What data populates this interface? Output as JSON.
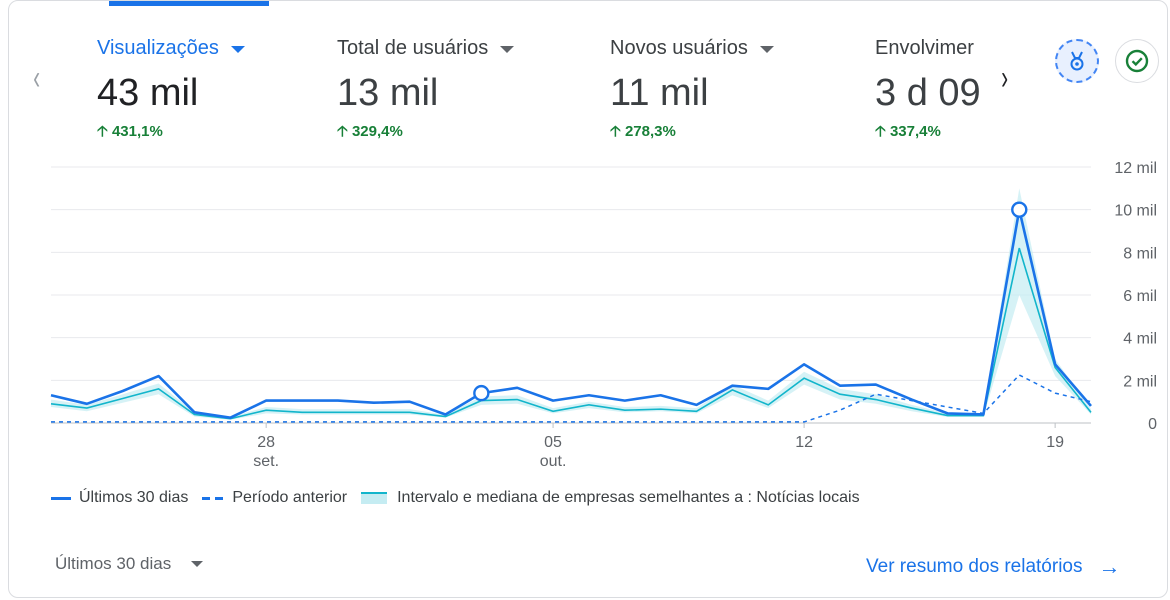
{
  "metrics": [
    {
      "label": "Visualizações",
      "value": "43 mil",
      "change": "431,1%"
    },
    {
      "label": "Total de usuários",
      "value": "13 mil",
      "change": "329,4%"
    },
    {
      "label": "Novos usuários",
      "value": "11 mil",
      "change": "278,3%"
    },
    {
      "label": "Envolvimer",
      "value": "3 d 09",
      "change": "337,4%"
    }
  ],
  "icons": {
    "prev": "chevron-left-icon",
    "next": "chevron-right-icon",
    "insights": "insights-badge-icon",
    "check": "check-circle-icon",
    "trend": "arrow-up-icon",
    "report_arrow": "arrow-right-icon"
  },
  "colors": {
    "accent": "#1a73e8",
    "positive": "#188038",
    "benchmark": "#12b5cb",
    "benchmark_band": "#c5ecf2"
  },
  "chart_data": {
    "type": "line",
    "x_tick_labels": [
      {
        "index": 6,
        "day": "28",
        "month": "set."
      },
      {
        "index": 14,
        "day": "05",
        "month": "out."
      },
      {
        "index": 21,
        "day": "12",
        "month": ""
      },
      {
        "index": 28,
        "day": "19",
        "month": ""
      }
    ],
    "y_ticks": [
      "0",
      "2 mil",
      "4 mil",
      "6 mil",
      "8 mil",
      "10 mil",
      "12 mil"
    ],
    "ylim": [
      0,
      12000
    ],
    "y_tick_values": [
      0,
      2000,
      4000,
      6000,
      8000,
      10000,
      12000
    ],
    "series": [
      {
        "name": "Últimos 30 dias",
        "style": "solid",
        "values": [
          1300,
          900,
          1500,
          2200,
          500,
          250,
          1050,
          1050,
          1050,
          950,
          1000,
          400,
          1400,
          1650,
          1050,
          1300,
          1050,
          1300,
          850,
          1750,
          1600,
          2750,
          1750,
          1800,
          1100,
          450,
          400,
          10000,
          2750,
          800
        ],
        "highlighted_indices": [
          12,
          27
        ]
      },
      {
        "name": "Período anterior",
        "style": "dashed",
        "values": [
          50,
          50,
          50,
          50,
          50,
          50,
          50,
          50,
          50,
          50,
          50,
          50,
          50,
          50,
          50,
          50,
          50,
          50,
          50,
          50,
          50,
          50,
          600,
          1350,
          1050,
          750,
          450,
          2250,
          1400,
          1000
        ]
      },
      {
        "name": "Intervalo e mediana de empresas semelhantes a : Notícias locais",
        "style": "band",
        "values": [
          900,
          700,
          1150,
          1600,
          400,
          200,
          600,
          500,
          500,
          500,
          500,
          300,
          1050,
          1100,
          550,
          850,
          600,
          650,
          550,
          1550,
          850,
          2100,
          1350,
          1100,
          700,
          350,
          350,
          8200,
          2600,
          500
        ],
        "band_low": [
          750,
          550,
          950,
          1350,
          300,
          150,
          450,
          400,
          400,
          400,
          400,
          250,
          850,
          900,
          450,
          700,
          500,
          550,
          450,
          1300,
          700,
          1800,
          1100,
          900,
          550,
          280,
          280,
          6000,
          2200,
          400
        ],
        "band_high": [
          1100,
          850,
          1350,
          1850,
          500,
          280,
          750,
          650,
          650,
          650,
          650,
          380,
          1250,
          1300,
          700,
          1000,
          750,
          800,
          700,
          1800,
          1050,
          2400,
          1600,
          1350,
          850,
          450,
          450,
          11000,
          3000,
          650
        ]
      }
    ]
  },
  "legend": {
    "current": "Últimos 30 dias",
    "previous": "Período anterior",
    "benchmark": "Intervalo e mediana de empresas semelhantes a : Notícias locais"
  },
  "footer": {
    "period": "Últimos 30 dias",
    "report_link": "Ver resumo dos relatórios"
  }
}
